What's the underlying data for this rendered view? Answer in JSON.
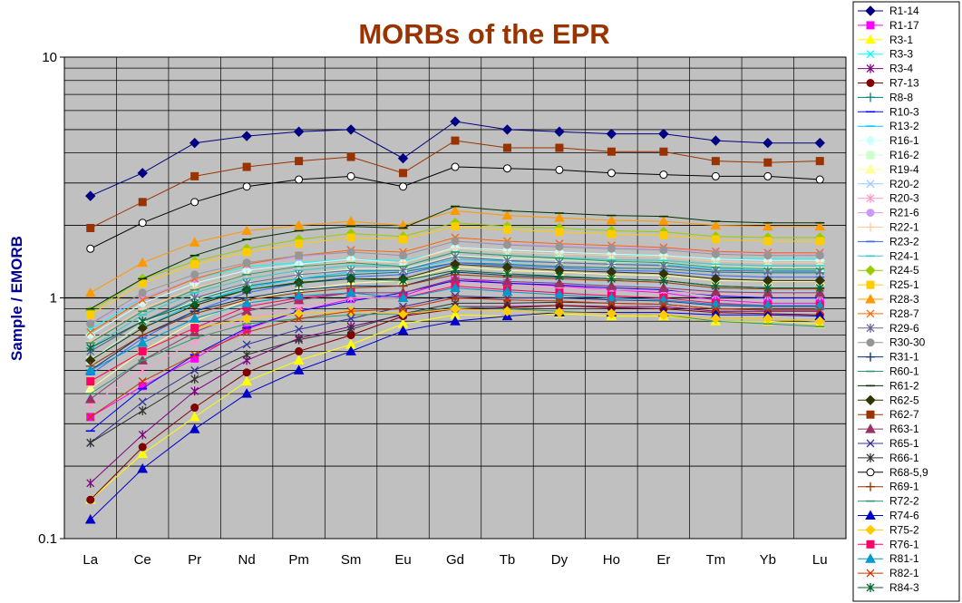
{
  "chart_data": {
    "type": "line",
    "title": "MORBs of the EPR",
    "ylabel": "Sample / EMORB",
    "xlabel": "",
    "yscale": "log",
    "ylim": [
      0.1,
      10
    ],
    "y_ticks": [
      "0.1",
      "1",
      "10"
    ],
    "grid": true,
    "legend": "right",
    "categories": [
      "La",
      "Ce",
      "Pr",
      "Nd",
      "Pm",
      "Sm",
      "Eu",
      "Gd",
      "Tb",
      "Dy",
      "Ho",
      "Er",
      "Tm",
      "Yb",
      "Lu"
    ],
    "colors": {
      "title": "#993300",
      "ylabel": "#000099",
      "plot_bg": "#C0C0C0"
    },
    "series": [
      {
        "name": "R1-14",
        "color": "#000080",
        "marker": "diamond",
        "values": [
          2.65,
          3.3,
          4.4,
          4.7,
          4.9,
          5.0,
          3.8,
          5.4,
          5.0,
          4.9,
          4.8,
          4.8,
          4.5,
          4.4,
          4.4
        ]
      },
      {
        "name": "R1-17",
        "color": "#FF00FF",
        "marker": "square",
        "values": [
          0.32,
          0.43,
          0.56,
          0.74,
          0.88,
          0.99,
          1.02,
          1.2,
          1.15,
          1.12,
          1.08,
          1.05,
          0.98,
          0.95,
          0.95
        ]
      },
      {
        "name": "R3-1",
        "color": "#FFFF00",
        "marker": "triangle",
        "values": [
          0.145,
          0.225,
          0.32,
          0.45,
          0.55,
          0.64,
          0.78,
          0.85,
          0.84,
          0.86,
          0.84,
          0.84,
          0.8,
          0.8,
          0.78
        ]
      },
      {
        "name": "R3-3",
        "color": "#00FFFF",
        "marker": "x",
        "values": [
          0.74,
          1.0,
          1.2,
          1.35,
          1.4,
          1.45,
          1.42,
          1.6,
          1.55,
          1.52,
          1.5,
          1.5,
          1.45,
          1.45,
          1.45
        ]
      },
      {
        "name": "R3-4",
        "color": "#800080",
        "marker": "star",
        "values": [
          0.17,
          0.27,
          0.41,
          0.55,
          0.68,
          0.76,
          0.85,
          0.92,
          0.92,
          0.93,
          0.92,
          0.92,
          0.88,
          0.88,
          0.88
        ]
      },
      {
        "name": "R7-13",
        "color": "#800000",
        "marker": "circle",
        "values": [
          0.145,
          0.24,
          0.35,
          0.49,
          0.6,
          0.7,
          0.84,
          0.9,
          0.91,
          0.93,
          0.91,
          0.9,
          0.87,
          0.86,
          0.85
        ]
      },
      {
        "name": "R8-8",
        "color": "#008080",
        "marker": "plus",
        "values": [
          0.6,
          0.8,
          0.98,
          1.12,
          1.2,
          1.25,
          1.28,
          1.4,
          1.38,
          1.35,
          1.33,
          1.32,
          1.28,
          1.27,
          1.27
        ]
      },
      {
        "name": "R10-3",
        "color": "#0000FF",
        "marker": "dash",
        "values": [
          0.28,
          0.42,
          0.58,
          0.75,
          0.88,
          0.97,
          1.05,
          1.18,
          1.15,
          1.13,
          1.1,
          1.08,
          1.02,
          1.0,
          1.0
        ]
      },
      {
        "name": "R13-2",
        "color": "#00CCFF",
        "marker": "dash",
        "values": [
          0.55,
          0.75,
          0.95,
          1.1,
          1.2,
          1.28,
          1.3,
          1.45,
          1.42,
          1.4,
          1.38,
          1.37,
          1.32,
          1.3,
          1.3
        ]
      },
      {
        "name": "R16-1",
        "color": "#CCFFFF",
        "marker": "diamond",
        "values": [
          0.7,
          0.95,
          1.15,
          1.3,
          1.38,
          1.45,
          1.4,
          1.62,
          1.58,
          1.55,
          1.52,
          1.5,
          1.45,
          1.43,
          1.43
        ]
      },
      {
        "name": "R16-2",
        "color": "#CCFFCC",
        "marker": "square",
        "values": [
          0.55,
          0.78,
          0.98,
          1.15,
          1.25,
          1.32,
          1.32,
          1.5,
          1.46,
          1.44,
          1.41,
          1.4,
          1.35,
          1.33,
          1.33
        ]
      },
      {
        "name": "R19-4",
        "color": "#FFFF99",
        "marker": "triangle",
        "values": [
          0.42,
          0.6,
          0.8,
          0.98,
          1.08,
          1.15,
          1.18,
          1.35,
          1.3,
          1.28,
          1.25,
          1.24,
          1.18,
          1.17,
          1.17
        ]
      },
      {
        "name": "R20-2",
        "color": "#99CCFF",
        "marker": "x",
        "values": [
          0.38,
          0.55,
          0.72,
          0.88,
          0.98,
          1.05,
          1.05,
          1.2,
          1.18,
          1.16,
          1.13,
          1.12,
          1.08,
          1.06,
          1.06
        ]
      },
      {
        "name": "R20-3",
        "color": "#FF99CC",
        "marker": "star",
        "values": [
          0.36,
          0.5,
          0.66,
          0.82,
          0.92,
          1.0,
          1.0,
          1.15,
          1.12,
          1.1,
          1.08,
          1.07,
          1.03,
          1.02,
          1.02
        ]
      },
      {
        "name": "R21-6",
        "color": "#CC99FF",
        "marker": "circle",
        "values": [
          0.78,
          1.0,
          1.2,
          1.38,
          1.48,
          1.55,
          1.5,
          1.72,
          1.67,
          1.65,
          1.62,
          1.6,
          1.55,
          1.53,
          1.52
        ]
      },
      {
        "name": "R22-1",
        "color": "#FFCC99",
        "marker": "plus",
        "values": [
          0.66,
          0.9,
          1.1,
          1.25,
          1.35,
          1.42,
          1.4,
          1.6,
          1.55,
          1.52,
          1.5,
          1.48,
          1.42,
          1.4,
          1.4
        ]
      },
      {
        "name": "R23-2",
        "color": "#3366FF",
        "marker": "dash",
        "values": [
          0.48,
          0.68,
          0.88,
          1.05,
          1.15,
          1.22,
          1.25,
          1.4,
          1.36,
          1.33,
          1.3,
          1.29,
          1.24,
          1.22,
          1.22
        ]
      },
      {
        "name": "R24-1",
        "color": "#33CCCC",
        "marker": "dash",
        "values": [
          0.62,
          0.85,
          1.05,
          1.2,
          1.3,
          1.36,
          1.35,
          1.55,
          1.5,
          1.47,
          1.44,
          1.43,
          1.38,
          1.36,
          1.36
        ]
      },
      {
        "name": "R24-5",
        "color": "#99CC00",
        "marker": "diamond",
        "values": [
          0.88,
          1.2,
          1.42,
          1.6,
          1.75,
          1.85,
          1.8,
          2.05,
          1.98,
          1.95,
          1.9,
          1.88,
          1.8,
          1.78,
          1.78
        ]
      },
      {
        "name": "R25-1",
        "color": "#FFCC00",
        "marker": "square",
        "values": [
          0.85,
          1.15,
          1.38,
          1.55,
          1.68,
          1.78,
          1.75,
          1.98,
          1.92,
          1.88,
          1.84,
          1.82,
          1.75,
          1.72,
          1.72
        ]
      },
      {
        "name": "R28-3",
        "color": "#FF9900",
        "marker": "triangle",
        "values": [
          1.05,
          1.4,
          1.7,
          1.9,
          2.0,
          2.08,
          2.0,
          2.3,
          2.2,
          2.15,
          2.1,
          2.08,
          2.0,
          1.98,
          1.98
        ]
      },
      {
        "name": "R28-7",
        "color": "#FF6600",
        "marker": "x",
        "values": [
          0.72,
          0.98,
          1.2,
          1.38,
          1.5,
          1.58,
          1.55,
          1.78,
          1.72,
          1.68,
          1.65,
          1.62,
          1.56,
          1.54,
          1.54
        ]
      },
      {
        "name": "R29-6",
        "color": "#666699",
        "marker": "star",
        "values": [
          0.6,
          0.8,
          1.0,
          1.15,
          1.25,
          1.3,
          1.3,
          1.48,
          1.43,
          1.4,
          1.38,
          1.36,
          1.3,
          1.29,
          1.29
        ]
      },
      {
        "name": "R30-30",
        "color": "#969696",
        "marker": "circle",
        "values": [
          0.78,
          1.05,
          1.25,
          1.4,
          1.5,
          1.55,
          1.5,
          1.72,
          1.66,
          1.63,
          1.6,
          1.58,
          1.52,
          1.5,
          1.5
        ]
      },
      {
        "name": "R31-1",
        "color": "#003366",
        "marker": "plus",
        "values": [
          0.5,
          0.7,
          0.88,
          1.0,
          1.08,
          1.12,
          1.12,
          1.28,
          1.24,
          1.22,
          1.2,
          1.18,
          1.12,
          1.1,
          1.1
        ]
      },
      {
        "name": "R60-1",
        "color": "#339966",
        "marker": "dash",
        "values": [
          0.65,
          0.88,
          1.08,
          1.25,
          1.35,
          1.4,
          1.35,
          1.55,
          1.5,
          1.46,
          1.42,
          1.4,
          1.34,
          1.32,
          1.32
        ]
      },
      {
        "name": "R61-2",
        "color": "#003300",
        "marker": "dash",
        "values": [
          0.9,
          1.2,
          1.5,
          1.75,
          1.9,
          1.98,
          1.95,
          2.4,
          2.3,
          2.25,
          2.2,
          2.18,
          2.08,
          2.05,
          2.05
        ]
      },
      {
        "name": "R62-5",
        "color": "#333300",
        "marker": "diamond",
        "values": [
          0.55,
          0.75,
          0.93,
          1.08,
          1.16,
          1.2,
          1.2,
          1.38,
          1.34,
          1.3,
          1.28,
          1.26,
          1.2,
          1.18,
          1.18
        ]
      },
      {
        "name": "R62-7",
        "color": "#993300",
        "marker": "square",
        "values": [
          1.95,
          2.5,
          3.2,
          3.5,
          3.7,
          3.85,
          3.3,
          4.5,
          4.2,
          4.2,
          4.05,
          4.05,
          3.7,
          3.65,
          3.7
        ]
      },
      {
        "name": "R63-1",
        "color": "#993366",
        "marker": "triangle",
        "values": [
          0.38,
          0.55,
          0.72,
          0.88,
          0.98,
          1.05,
          1.05,
          1.2,
          1.17,
          1.15,
          1.12,
          1.1,
          1.06,
          1.05,
          1.05
        ]
      },
      {
        "name": "R65-1",
        "color": "#333399",
        "marker": "x",
        "values": [
          0.25,
          0.37,
          0.5,
          0.64,
          0.74,
          0.82,
          0.92,
          1.02,
          1.0,
          1.0,
          0.98,
          0.97,
          0.93,
          0.92,
          0.92
        ]
      },
      {
        "name": "R66-1",
        "color": "#333333",
        "marker": "star",
        "values": [
          0.25,
          0.34,
          0.46,
          0.58,
          0.67,
          0.74,
          0.86,
          0.95,
          0.95,
          0.96,
          0.95,
          0.94,
          0.9,
          0.89,
          0.89
        ]
      },
      {
        "name": "R68-5,9",
        "color": "#000000",
        "marker": "circle-open",
        "values": [
          1.6,
          2.05,
          2.5,
          2.9,
          3.1,
          3.2,
          2.9,
          3.5,
          3.45,
          3.4,
          3.3,
          3.25,
          3.2,
          3.2,
          3.1
        ]
      },
      {
        "name": "R69-1",
        "color": "#993300",
        "marker": "plus",
        "values": [
          0.52,
          0.7,
          0.86,
          0.98,
          1.05,
          1.1,
          1.12,
          1.25,
          1.22,
          1.2,
          1.18,
          1.16,
          1.1,
          1.09,
          1.09
        ]
      },
      {
        "name": "R72-2",
        "color": "#339966",
        "marker": "dash",
        "values": [
          0.4,
          0.55,
          0.68,
          0.78,
          0.82,
          0.85,
          0.86,
          0.92,
          0.9,
          0.88,
          0.86,
          0.85,
          0.8,
          0.78,
          0.76
        ]
      },
      {
        "name": "R74-6",
        "color": "#0000CC",
        "marker": "triangle",
        "values": [
          0.12,
          0.195,
          0.285,
          0.4,
          0.5,
          0.6,
          0.73,
          0.8,
          0.84,
          0.87,
          0.87,
          0.87,
          0.85,
          0.85,
          0.84
        ]
      },
      {
        "name": "R75-2",
        "color": "#FFCC00",
        "marker": "diamond",
        "values": [
          0.45,
          0.6,
          0.75,
          0.82,
          0.86,
          0.88,
          0.86,
          0.9,
          0.88,
          0.87,
          0.86,
          0.85,
          0.82,
          0.82,
          0.8
        ]
      },
      {
        "name": "R76-1",
        "color": "#FF0066",
        "marker": "square",
        "values": [
          0.45,
          0.6,
          0.75,
          0.92,
          1.0,
          1.05,
          1.0,
          1.12,
          1.08,
          1.05,
          1.02,
          1.0,
          0.95,
          0.93,
          0.93
        ]
      },
      {
        "name": "R81-1",
        "color": "#0099CC",
        "marker": "triangle",
        "values": [
          0.5,
          0.65,
          0.82,
          0.95,
          1.02,
          1.05,
          1.0,
          1.1,
          1.06,
          1.03,
          1.0,
          0.98,
          0.94,
          0.93,
          0.93
        ]
      },
      {
        "name": "R82-1",
        "color": "#CC3300",
        "marker": "x",
        "values": [
          0.32,
          0.45,
          0.58,
          0.72,
          0.82,
          0.88,
          0.9,
          1.0,
          0.98,
          0.97,
          0.95,
          0.94,
          0.9,
          0.89,
          0.89
        ]
      },
      {
        "name": "R84-3",
        "color": "#006633",
        "marker": "star",
        "values": [
          0.62,
          0.8,
          0.95,
          1.08,
          1.15,
          1.2,
          1.18,
          1.3,
          1.26,
          1.23,
          1.2,
          1.18,
          1.12,
          1.1,
          1.1
        ]
      }
    ]
  }
}
